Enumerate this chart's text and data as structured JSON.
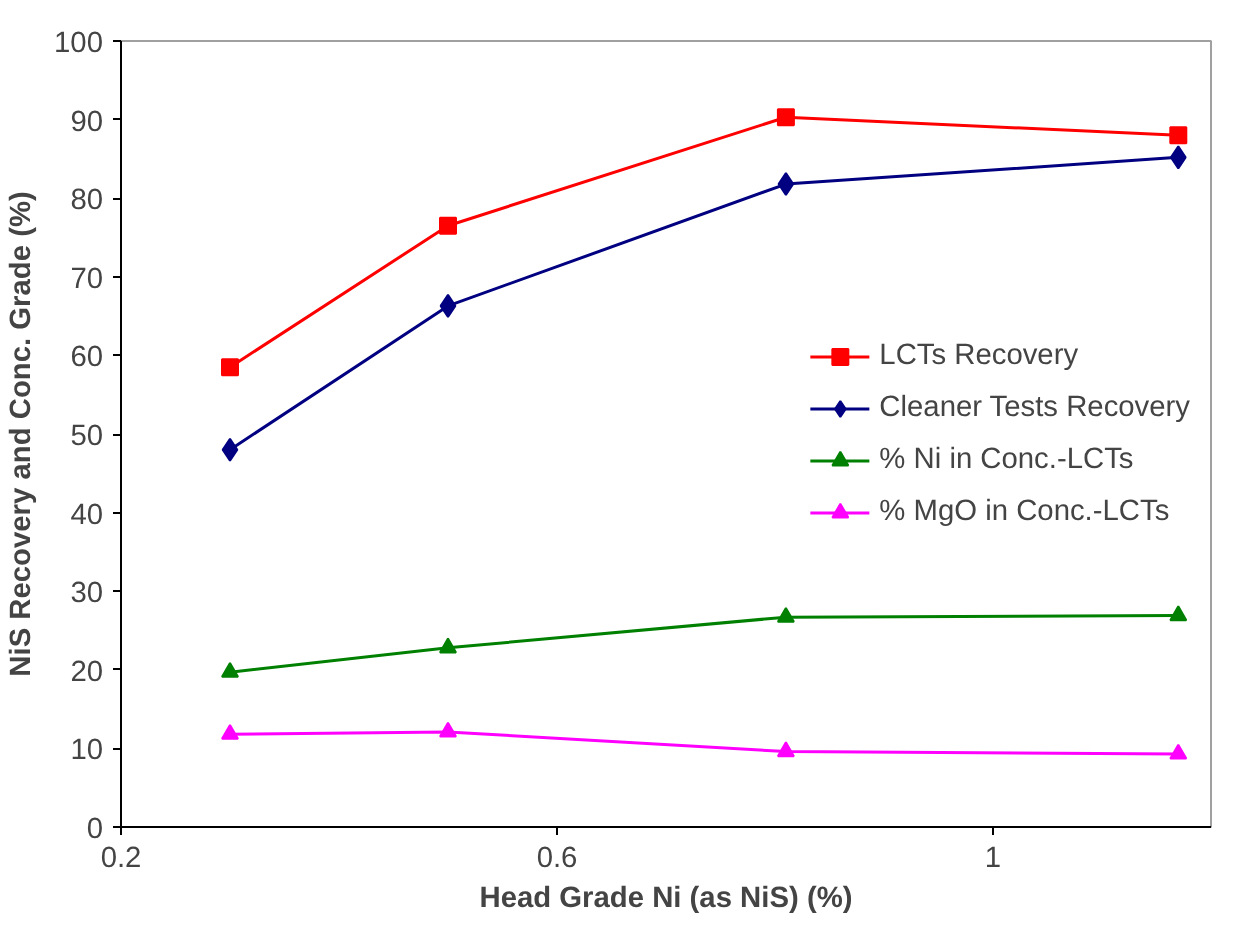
{
  "chart_data": {
    "type": "line",
    "xlabel": "Head Grade Ni (as NiS) (%)",
    "ylabel": "NiS Recovery and Conc. Grade (%)",
    "x": [
      0.3,
      0.5,
      0.81,
      1.17
    ],
    "series": [
      {
        "name": "LCTs Recovery",
        "color": "#ff0000",
        "marker": "square",
        "values": [
          58.5,
          76.5,
          90.3,
          88.0
        ]
      },
      {
        "name": "Cleaner Tests Recovery",
        "color": "#000080",
        "marker": "diamond",
        "values": [
          48.0,
          66.3,
          81.8,
          85.2
        ]
      },
      {
        "name": "% Ni in Conc.-LCTs",
        "color": "#008000",
        "marker": "triangle",
        "values": [
          19.7,
          22.8,
          26.7,
          26.9
        ]
      },
      {
        "name": "% MgO in Conc.-LCTs",
        "color": "#ff00ff",
        "marker": "triangle",
        "values": [
          11.8,
          12.1,
          9.6,
          9.3
        ]
      }
    ],
    "xlim": [
      0.2,
      1.2
    ],
    "xticks": [
      0.2,
      0.6,
      {
        "value": 1.0,
        "label": "1"
      }
    ],
    "ylim": [
      0,
      100
    ],
    "yticks": [
      0,
      10,
      20,
      30,
      40,
      50,
      60,
      70,
      80,
      90,
      100
    ],
    "grid": false,
    "legend": "right",
    "line_style": "solid"
  }
}
